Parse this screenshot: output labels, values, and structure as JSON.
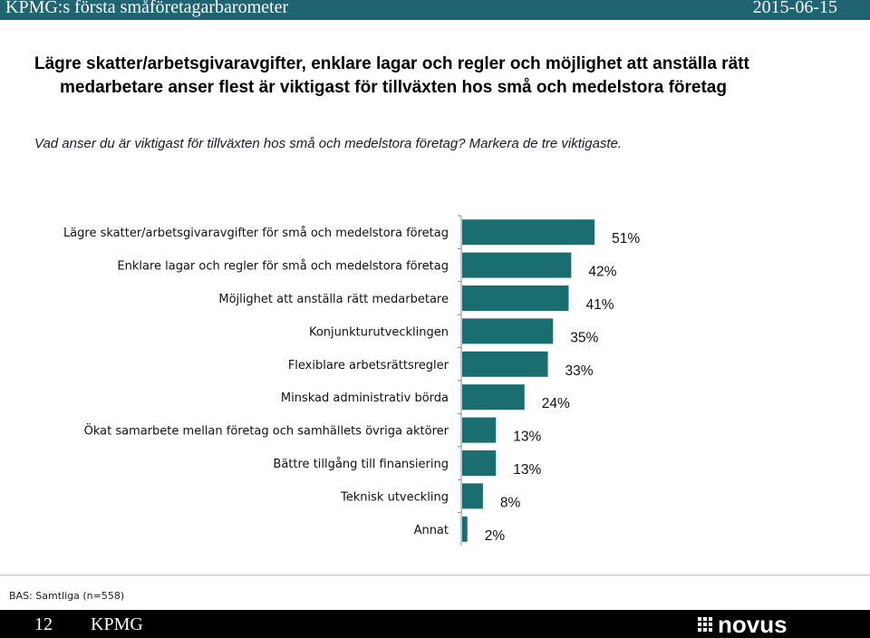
{
  "header": {
    "title": "KPMG:s första småföretagarbarometer",
    "date": "2015-06-15"
  },
  "headline": {
    "line1": "Lägre skatter/arbetsgivaravgifter, enklare lagar och regler och möjlighet att anställa rätt",
    "line2": "medarbetare anser flest är viktigast för tillväxten hos små och medelstora företag"
  },
  "question": "Vad anser du är viktigast för tillväxten hos små och medelstora företag? Markera de tre viktigaste.",
  "chart_data": {
    "type": "bar",
    "orientation": "horizontal",
    "categories": [
      "Lägre skatter/arbetsgivaravgifter för små och medelstora företag",
      "Enklare lagar och regler för små och medelstora företag",
      "Möjlighet att anställa rätt medarbetare",
      "Konjunkturutvecklingen",
      "Flexiblare arbetsrättsregler",
      "Minskad administrativ börda",
      "Ökat samarbete mellan företag och samhällets övriga aktörer",
      "Bättre tillgång till finansiering",
      "Teknisk utveckling",
      "Annat"
    ],
    "values": [
      51,
      42,
      41,
      35,
      33,
      24,
      13,
      13,
      8,
      2
    ],
    "value_labels": [
      "51%",
      "42%",
      "41%",
      "35%",
      "33%",
      "24%",
      "13%",
      "13%",
      "8%",
      "2%"
    ],
    "value_unit": "%",
    "bar_color": "#1a6e70",
    "grid": false,
    "legend": "none"
  },
  "base_note": "BAS: Samtliga (n=558)",
  "footer": {
    "page_number": "12",
    "brand": "KPMG",
    "logo_text": "novus"
  },
  "colors": {
    "header_bg": "#1f6470",
    "footer_bg": "#000000",
    "bar": "#1a6e70"
  }
}
